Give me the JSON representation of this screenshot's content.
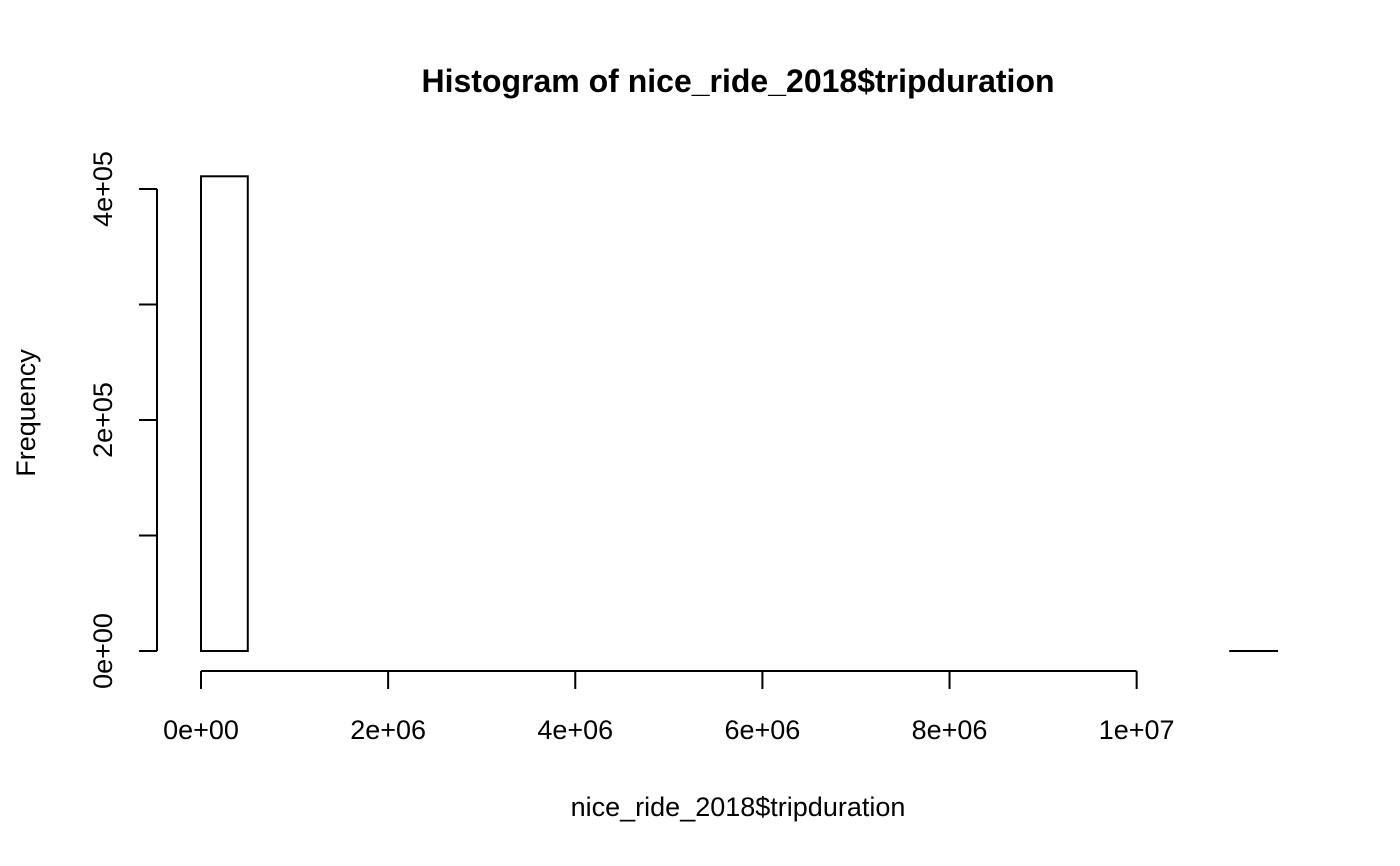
{
  "chart_data": {
    "type": "bar",
    "title": "Histogram of nice_ride_2018$tripduration",
    "xlabel": "nice_ride_2018$tripduration",
    "ylabel": "Frequency",
    "xlim": [
      0,
      11500000
    ],
    "ylim": [
      0,
      400000
    ],
    "bin_width": 500000,
    "bins": [
      {
        "start": 0,
        "end": 500000,
        "value": 411000
      },
      {
        "start": 500000,
        "end": 1000000,
        "value": 0
      },
      {
        "start": 1000000,
        "end": 1500000,
        "value": 0
      },
      {
        "start": 1500000,
        "end": 2000000,
        "value": 0
      },
      {
        "start": 2000000,
        "end": 2500000,
        "value": 0
      },
      {
        "start": 2500000,
        "end": 3000000,
        "value": 0
      },
      {
        "start": 3000000,
        "end": 3500000,
        "value": 0
      },
      {
        "start": 3500000,
        "end": 4000000,
        "value": 0
      },
      {
        "start": 4000000,
        "end": 4500000,
        "value": 0
      },
      {
        "start": 4500000,
        "end": 5000000,
        "value": 0
      },
      {
        "start": 5000000,
        "end": 5500000,
        "value": 0
      },
      {
        "start": 5500000,
        "end": 6000000,
        "value": 0
      },
      {
        "start": 6000000,
        "end": 6500000,
        "value": 0
      },
      {
        "start": 6500000,
        "end": 7000000,
        "value": 0
      },
      {
        "start": 7000000,
        "end": 7500000,
        "value": 0
      },
      {
        "start": 7500000,
        "end": 8000000,
        "value": 0
      },
      {
        "start": 8000000,
        "end": 8500000,
        "value": 0
      },
      {
        "start": 8500000,
        "end": 9000000,
        "value": 0
      },
      {
        "start": 9000000,
        "end": 9500000,
        "value": 0
      },
      {
        "start": 9500000,
        "end": 10000000,
        "value": 0
      },
      {
        "start": 10000000,
        "end": 10500000,
        "value": 0
      },
      {
        "start": 10500000,
        "end": 11000000,
        "value": 0
      },
      {
        "start": 11000000,
        "end": 11500000,
        "value": 1
      }
    ],
    "x_ticks": [
      {
        "value": 0,
        "label": "0e+00"
      },
      {
        "value": 2000000,
        "label": "2e+06"
      },
      {
        "value": 4000000,
        "label": "4e+06"
      },
      {
        "value": 6000000,
        "label": "6e+06"
      },
      {
        "value": 8000000,
        "label": "8e+06"
      },
      {
        "value": 10000000,
        "label": "1e+07"
      }
    ],
    "y_ticks": [
      {
        "value": 0,
        "label": "0e+00"
      },
      {
        "value": 100000,
        "label": ""
      },
      {
        "value": 200000,
        "label": "2e+05"
      },
      {
        "value": 300000,
        "label": ""
      },
      {
        "value": 400000,
        "label": "4e+05"
      }
    ],
    "x_axis_end": 10000000,
    "grid": false,
    "legend": "none",
    "colors": {
      "bar_fill": "#ffffff",
      "bar_stroke": "#000000",
      "axis": "#000000"
    }
  }
}
